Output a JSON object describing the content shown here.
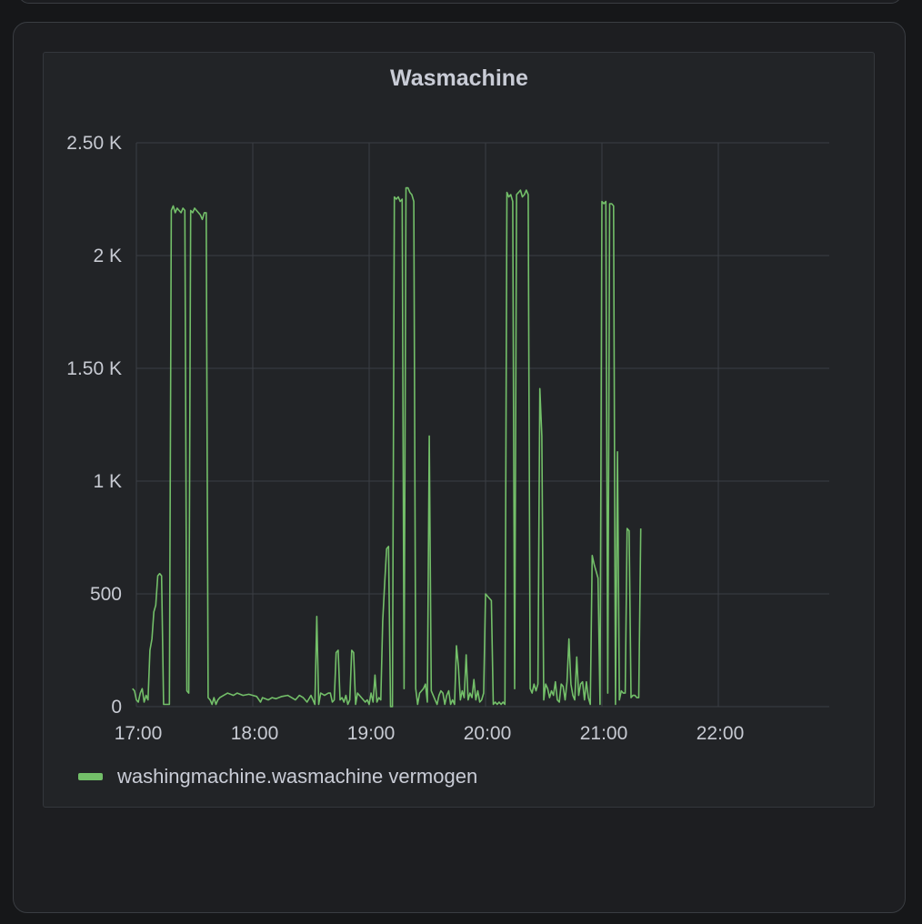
{
  "panel": {
    "title": "Wasmachine"
  },
  "legend": {
    "label": "washingmachine.wasmachine vermogen",
    "color": "#73bf69"
  },
  "chart_data": {
    "type": "line",
    "title": "Wasmachine",
    "xlabel": "",
    "ylabel": "",
    "ylim": [
      0,
      2500
    ],
    "xlim": [
      "17:00",
      "22:55"
    ],
    "y_ticks": [
      {
        "value": 0,
        "label": "0"
      },
      {
        "value": 500,
        "label": "500"
      },
      {
        "value": 1000,
        "label": "1 K"
      },
      {
        "value": 1500,
        "label": "1.50 K"
      },
      {
        "value": 2000,
        "label": "2 K"
      },
      {
        "value": 2500,
        "label": "2.50 K"
      }
    ],
    "x_ticks": [
      "17:00",
      "18:00",
      "19:00",
      "20:00",
      "21:00",
      "22:00"
    ],
    "grid": true,
    "legend_position": "bottom-left",
    "series": [
      {
        "name": "washingmachine.wasmachine vermogen",
        "color": "#73bf69",
        "points": [
          [
            "16:58",
            80
          ],
          [
            "16:59",
            70
          ],
          [
            "17:00",
            30
          ],
          [
            "17:01",
            20
          ],
          [
            "17:02",
            60
          ],
          [
            "17:03",
            80
          ],
          [
            "17:04",
            20
          ],
          [
            "17:05",
            50
          ],
          [
            "17:06",
            30
          ],
          [
            "17:07",
            250
          ],
          [
            "17:08",
            300
          ],
          [
            "17:09",
            420
          ],
          [
            "17:10",
            450
          ],
          [
            "17:11",
            580
          ],
          [
            "17:12",
            590
          ],
          [
            "17:13",
            580
          ],
          [
            "17:14",
            10
          ],
          [
            "17:17",
            10
          ],
          [
            "17:18",
            2200
          ],
          [
            "17:19",
            2220
          ],
          [
            "17:20",
            2190
          ],
          [
            "17:21",
            2210
          ],
          [
            "17:22",
            2200
          ],
          [
            "17:23",
            2190
          ],
          [
            "17:24",
            2210
          ],
          [
            "17:25",
            2200
          ],
          [
            "17:26",
            70
          ],
          [
            "17:27",
            60
          ],
          [
            "17:28",
            2200
          ],
          [
            "17:29",
            2190
          ],
          [
            "17:30",
            2210
          ],
          [
            "17:31",
            2200
          ],
          [
            "17:32",
            2190
          ],
          [
            "17:33",
            2180
          ],
          [
            "17:34",
            2160
          ],
          [
            "17:35",
            2190
          ],
          [
            "17:36",
            2190
          ],
          [
            "17:37",
            40
          ],
          [
            "17:38",
            30
          ],
          [
            "17:39",
            10
          ],
          [
            "17:40",
            40
          ],
          [
            "17:41",
            10
          ],
          [
            "17:42",
            30
          ],
          [
            "17:43",
            40
          ],
          [
            "17:45",
            50
          ],
          [
            "17:47",
            60
          ],
          [
            "17:50",
            50
          ],
          [
            "17:52",
            60
          ],
          [
            "17:55",
            50
          ],
          [
            "17:58",
            55
          ],
          [
            "18:00",
            50
          ],
          [
            "18:02",
            45
          ],
          [
            "18:04",
            20
          ],
          [
            "18:05",
            40
          ],
          [
            "18:08",
            30
          ],
          [
            "18:10",
            40
          ],
          [
            "18:12",
            35
          ],
          [
            "18:15",
            45
          ],
          [
            "18:18",
            50
          ],
          [
            "18:20",
            40
          ],
          [
            "18:22",
            30
          ],
          [
            "18:24",
            50
          ],
          [
            "18:26",
            40
          ],
          [
            "18:28",
            20
          ],
          [
            "18:30",
            50
          ],
          [
            "18:32",
            10
          ],
          [
            "18:33",
            400
          ],
          [
            "18:34",
            10
          ],
          [
            "18:35",
            60
          ],
          [
            "18:37",
            50
          ],
          [
            "18:39",
            60
          ],
          [
            "18:40",
            60
          ],
          [
            "18:41",
            20
          ],
          [
            "18:42",
            30
          ],
          [
            "18:43",
            240
          ],
          [
            "18:44",
            250
          ],
          [
            "18:45",
            30
          ],
          [
            "18:46",
            40
          ],
          [
            "18:47",
            20
          ],
          [
            "18:48",
            50
          ],
          [
            "18:49",
            10
          ],
          [
            "18:50",
            30
          ],
          [
            "18:51",
            250
          ],
          [
            "18:52",
            240
          ],
          [
            "18:53",
            10
          ],
          [
            "18:54",
            60
          ],
          [
            "18:56",
            40
          ],
          [
            "18:58",
            20
          ],
          [
            "18:59",
            30
          ],
          [
            "19:00",
            10
          ],
          [
            "19:01",
            60
          ],
          [
            "19:02",
            20
          ],
          [
            "19:03",
            140
          ],
          [
            "19:04",
            20
          ],
          [
            "19:05",
            40
          ],
          [
            "19:06",
            30
          ],
          [
            "19:07",
            380
          ],
          [
            "19:08",
            550
          ],
          [
            "19:09",
            700
          ],
          [
            "19:10",
            710
          ],
          [
            "19:11",
            0
          ],
          [
            "19:12",
            0
          ],
          [
            "19:13",
            2260
          ],
          [
            "19:14",
            2250
          ],
          [
            "19:15",
            2260
          ],
          [
            "19:16",
            2240
          ],
          [
            "19:17",
            2250
          ],
          [
            "19:18",
            80
          ],
          [
            "19:19",
            2300
          ],
          [
            "19:20",
            2300
          ],
          [
            "19:21",
            2280
          ],
          [
            "19:22",
            2270
          ],
          [
            "19:23",
            2240
          ],
          [
            "19:24",
            80
          ],
          [
            "19:25",
            10
          ],
          [
            "19:26",
            60
          ],
          [
            "19:27",
            70
          ],
          [
            "19:28",
            80
          ],
          [
            "19:29",
            100
          ],
          [
            "19:30",
            20
          ],
          [
            "19:31",
            1200
          ],
          [
            "19:32",
            70
          ],
          [
            "19:33",
            50
          ],
          [
            "19:34",
            30
          ],
          [
            "19:35",
            10
          ],
          [
            "19:36",
            50
          ],
          [
            "19:37",
            70
          ],
          [
            "19:38",
            60
          ],
          [
            "19:39",
            10
          ],
          [
            "19:40",
            50
          ],
          [
            "19:41",
            70
          ],
          [
            "19:42",
            10
          ],
          [
            "19:43",
            30
          ],
          [
            "19:44",
            10
          ],
          [
            "19:45",
            270
          ],
          [
            "19:46",
            180
          ],
          [
            "19:47",
            30
          ],
          [
            "19:48",
            70
          ],
          [
            "19:49",
            40
          ],
          [
            "19:50",
            230
          ],
          [
            "19:51",
            30
          ],
          [
            "19:52",
            60
          ],
          [
            "19:53",
            40
          ],
          [
            "19:54",
            120
          ],
          [
            "19:55",
            30
          ],
          [
            "19:56",
            70
          ],
          [
            "19:57",
            20
          ],
          [
            "19:58",
            30
          ],
          [
            "19:59",
            60
          ],
          [
            "20:00",
            500
          ],
          [
            "20:01",
            490
          ],
          [
            "20:02",
            480
          ],
          [
            "20:03",
            470
          ],
          [
            "20:04",
            10
          ],
          [
            "20:05",
            20
          ],
          [
            "20:06",
            10
          ],
          [
            "20:07",
            20
          ],
          [
            "20:08",
            10
          ],
          [
            "20:09",
            20
          ],
          [
            "20:10",
            10
          ],
          [
            "20:11",
            2280
          ],
          [
            "20:12",
            2260
          ],
          [
            "20:13",
            2270
          ],
          [
            "20:14",
            2240
          ],
          [
            "20:15",
            80
          ],
          [
            "20:16",
            2270
          ],
          [
            "20:17",
            2280
          ],
          [
            "20:18",
            2290
          ],
          [
            "20:19",
            2260
          ],
          [
            "20:20",
            2270
          ],
          [
            "20:21",
            2290
          ],
          [
            "20:22",
            2270
          ],
          [
            "20:23",
            80
          ],
          [
            "20:24",
            60
          ],
          [
            "20:25",
            100
          ],
          [
            "20:26",
            70
          ],
          [
            "20:27",
            100
          ],
          [
            "20:28",
            1410
          ],
          [
            "20:29",
            1200
          ],
          [
            "20:30",
            30
          ],
          [
            "20:31",
            100
          ],
          [
            "20:32",
            80
          ],
          [
            "20:33",
            40
          ],
          [
            "20:34",
            70
          ],
          [
            "20:35",
            50
          ],
          [
            "20:36",
            110
          ],
          [
            "20:37",
            30
          ],
          [
            "20:38",
            20
          ],
          [
            "20:39",
            100
          ],
          [
            "20:40",
            90
          ],
          [
            "20:41",
            30
          ],
          [
            "20:42",
            110
          ],
          [
            "20:43",
            300
          ],
          [
            "20:44",
            100
          ],
          [
            "20:45",
            50
          ],
          [
            "20:46",
            30
          ],
          [
            "20:47",
            220
          ],
          [
            "20:48",
            50
          ],
          [
            "20:49",
            100
          ],
          [
            "20:50",
            110
          ],
          [
            "20:51",
            30
          ],
          [
            "20:52",
            110
          ],
          [
            "20:53",
            40
          ],
          [
            "20:54",
            10
          ],
          [
            "20:55",
            670
          ],
          [
            "20:56",
            630
          ],
          [
            "20:57",
            600
          ],
          [
            "20:58",
            570
          ],
          [
            "20:59",
            10
          ],
          [
            "21:00",
            2240
          ],
          [
            "21:01",
            2230
          ],
          [
            "21:02",
            2240
          ],
          [
            "21:03",
            60
          ],
          [
            "21:04",
            2230
          ],
          [
            "21:05",
            2230
          ],
          [
            "21:06",
            2220
          ],
          [
            "21:07",
            10
          ],
          [
            "21:08",
            1130
          ],
          [
            "21:09",
            30
          ],
          [
            "21:10",
            70
          ],
          [
            "21:11",
            60
          ],
          [
            "21:12",
            60
          ],
          [
            "21:13",
            790
          ],
          [
            "21:14",
            780
          ],
          [
            "21:15",
            40
          ],
          [
            "21:16",
            50
          ],
          [
            "21:17",
            50
          ],
          [
            "21:18",
            40
          ],
          [
            "21:19",
            40
          ],
          [
            "21:20",
            790
          ]
        ]
      }
    ]
  }
}
